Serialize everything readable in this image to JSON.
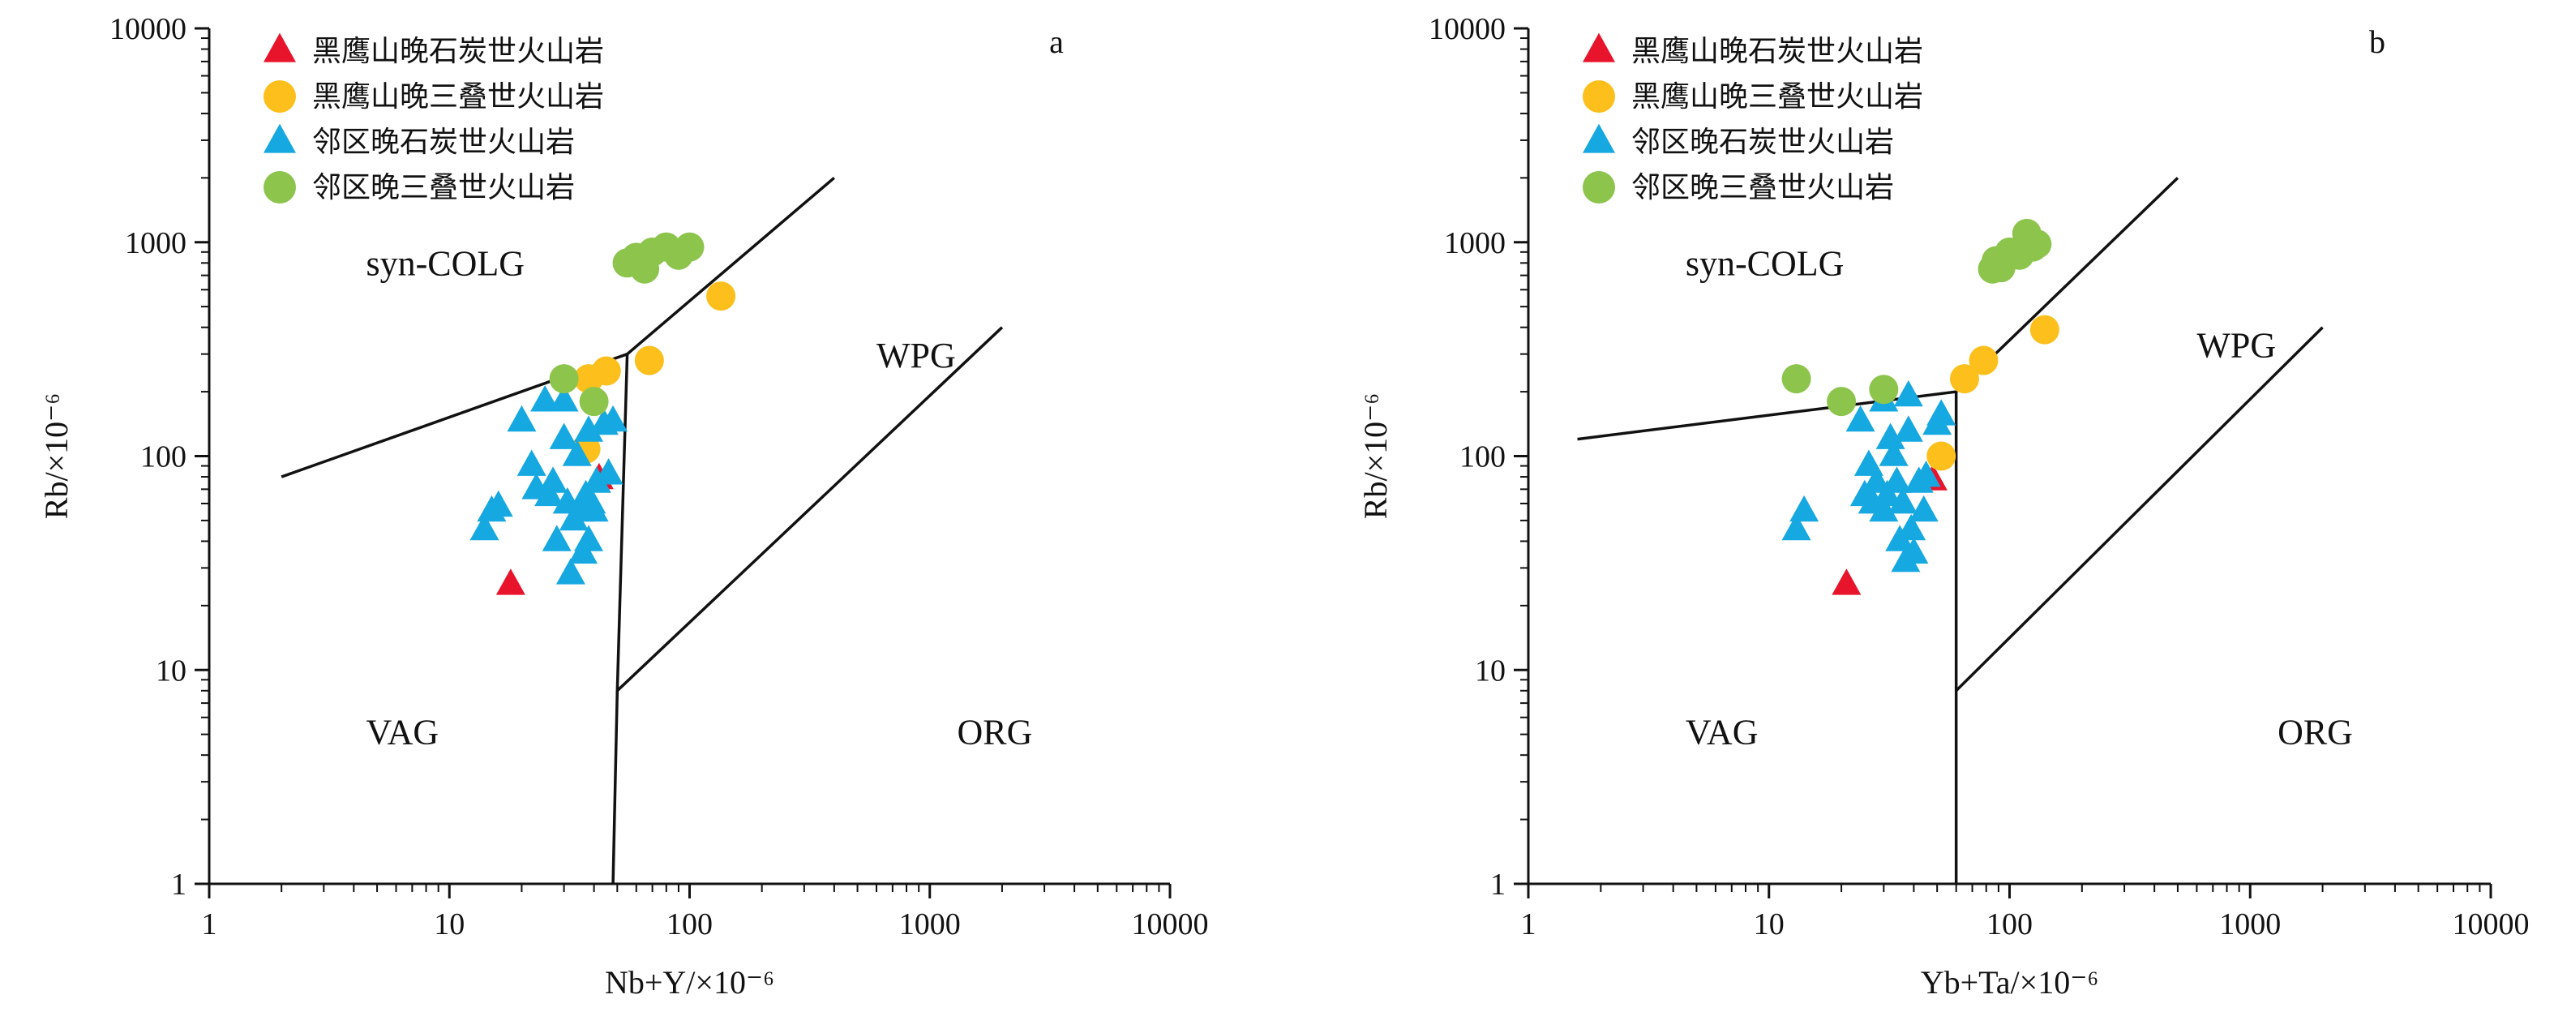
{
  "chart_data": [
    {
      "type": "scatter",
      "panel_label": "a",
      "xlabel": "Nb+Y/×10⁻⁶",
      "ylabel": "Rb/×10⁻⁶",
      "x_scale": "log",
      "y_scale": "log",
      "xlim": [
        1,
        10000
      ],
      "ylim": [
        1,
        10000
      ],
      "x_ticks": [
        "1",
        "10",
        "100",
        "1000",
        "10000"
      ],
      "y_ticks": [
        "1",
        "10",
        "100",
        "1000",
        "10000"
      ],
      "grid": false,
      "legend_position": "top-left",
      "field_labels": [
        {
          "text": "syn-COLG",
          "x": 4.5,
          "y": 700
        },
        {
          "text": "WPG",
          "x": 600,
          "y": 260
        },
        {
          "text": "VAG",
          "x": 4.5,
          "y": 4.5
        },
        {
          "text": "ORG",
          "x": 1300,
          "y": 4.5
        }
      ],
      "boundaries": [
        [
          [
            2,
            80
          ],
          [
            55,
            300
          ],
          [
            400,
            2000
          ]
        ],
        [
          [
            55,
            300
          ],
          [
            50,
            8
          ],
          [
            2000,
            400
          ]
        ],
        [
          [
            50,
            8
          ],
          [
            48,
            1
          ]
        ]
      ],
      "series": [
        {
          "name": "黑鹰山晚石炭世火山岩",
          "marker": "triangle",
          "color": "#e8142c",
          "points": [
            [
              18,
              25
            ],
            [
              42,
              78
            ]
          ]
        },
        {
          "name": "黑鹰山晚三叠世火山岩",
          "marker": "circle",
          "color": "#fdbf1c",
          "points": [
            [
              37,
              108
            ],
            [
              38,
              230
            ],
            [
              45,
              250
            ],
            [
              68,
              280
            ],
            [
              135,
              560
            ]
          ]
        },
        {
          "name": "邻区晚石炭世火山岩",
          "marker": "triangle",
          "color": "#16a8e0",
          "points": [
            [
              14,
              45
            ],
            [
              15,
              55
            ],
            [
              16,
              58
            ],
            [
              20,
              145
            ],
            [
              22,
              90
            ],
            [
              23,
              70
            ],
            [
              25,
              180
            ],
            [
              26,
              65
            ],
            [
              27,
              75
            ],
            [
              28,
              40
            ],
            [
              30,
              180
            ],
            [
              30,
              120
            ],
            [
              31,
              60
            ],
            [
              32,
              28
            ],
            [
              33,
              50
            ],
            [
              34,
              100
            ],
            [
              35,
              55
            ],
            [
              36,
              35
            ],
            [
              37,
              65
            ],
            [
              38,
              130
            ],
            [
              38,
              40
            ],
            [
              39,
              60
            ],
            [
              40,
              55
            ],
            [
              41,
              75
            ],
            [
              44,
              140
            ],
            [
              48,
              145
            ],
            [
              46,
              82
            ]
          ]
        },
        {
          "name": "邻区晚三叠世火山岩",
          "marker": "circle",
          "color": "#8cc44c",
          "points": [
            [
              30,
              230
            ],
            [
              40,
              180
            ],
            [
              55,
              800
            ],
            [
              60,
              850
            ],
            [
              65,
              750
            ],
            [
              70,
              900
            ],
            [
              80,
              950
            ],
            [
              90,
              870
            ],
            [
              100,
              950
            ]
          ]
        }
      ]
    },
    {
      "type": "scatter",
      "panel_label": "b",
      "xlabel": "Yb+Ta/×10⁻⁶",
      "ylabel": "Rb/×10⁻⁶",
      "x_scale": "log",
      "y_scale": "log",
      "xlim": [
        1,
        10000
      ],
      "ylim": [
        1,
        10000
      ],
      "x_ticks": [
        "1",
        "10",
        "100",
        "1000",
        "10000"
      ],
      "y_ticks": [
        "1",
        "10",
        "100",
        "1000",
        "10000"
      ],
      "grid": false,
      "legend_position": "top-left",
      "field_labels": [
        {
          "text": "syn-COLG",
          "x": 4.5,
          "y": 700
        },
        {
          "text": "WPG",
          "x": 600,
          "y": 290
        },
        {
          "text": "VAG",
          "x": 4.5,
          "y": 4.5
        },
        {
          "text": "ORG",
          "x": 1300,
          "y": 4.5
        }
      ],
      "boundaries": [
        [
          [
            1.6,
            120
          ],
          [
            60,
            200
          ],
          [
            500,
            2000
          ]
        ],
        [
          [
            60,
            200
          ],
          [
            60,
            1
          ]
        ],
        [
          [
            60,
            8
          ],
          [
            2000,
            400
          ]
        ]
      ],
      "series": [
        {
          "name": "黑鹰山晚石炭世火山岩",
          "marker": "triangle",
          "color": "#e8142c",
          "points": [
            [
              21,
              25
            ],
            [
              48,
              77
            ]
          ]
        },
        {
          "name": "黑鹰山晚三叠世火山岩",
          "marker": "circle",
          "color": "#fdbf1c",
          "points": [
            [
              52,
              100
            ],
            [
              65,
              230
            ],
            [
              78,
              280
            ],
            [
              140,
              390
            ]
          ]
        },
        {
          "name": "邻区晚石炭世火山岩",
          "marker": "triangle",
          "color": "#16a8e0",
          "points": [
            [
              13,
              45
            ],
            [
              14,
              55
            ],
            [
              24,
              145
            ],
            [
              25,
              65
            ],
            [
              26,
              90
            ],
            [
              27,
              60
            ],
            [
              28,
              75
            ],
            [
              30,
              180
            ],
            [
              30,
              55
            ],
            [
              31,
              65
            ],
            [
              32,
              120
            ],
            [
              33,
              100
            ],
            [
              34,
              75
            ],
            [
              35,
              40
            ],
            [
              36,
              60
            ],
            [
              37,
              32
            ],
            [
              38,
              190
            ],
            [
              38,
              130
            ],
            [
              39,
              45
            ],
            [
              40,
              35
            ],
            [
              42,
              75
            ],
            [
              44,
              55
            ],
            [
              45,
              80
            ],
            [
              50,
              140
            ],
            [
              52,
              155
            ]
          ]
        },
        {
          "name": "邻区晚三叠世火山岩",
          "marker": "circle",
          "color": "#8cc44c",
          "points": [
            [
              13,
              230
            ],
            [
              20,
              180
            ],
            [
              30,
              205
            ],
            [
              85,
              750
            ],
            [
              88,
              820
            ],
            [
              92,
              760
            ],
            [
              100,
              900
            ],
            [
              110,
              870
            ],
            [
              118,
              1100
            ],
            [
              125,
              950
            ],
            [
              130,
              980
            ]
          ]
        }
      ]
    }
  ]
}
